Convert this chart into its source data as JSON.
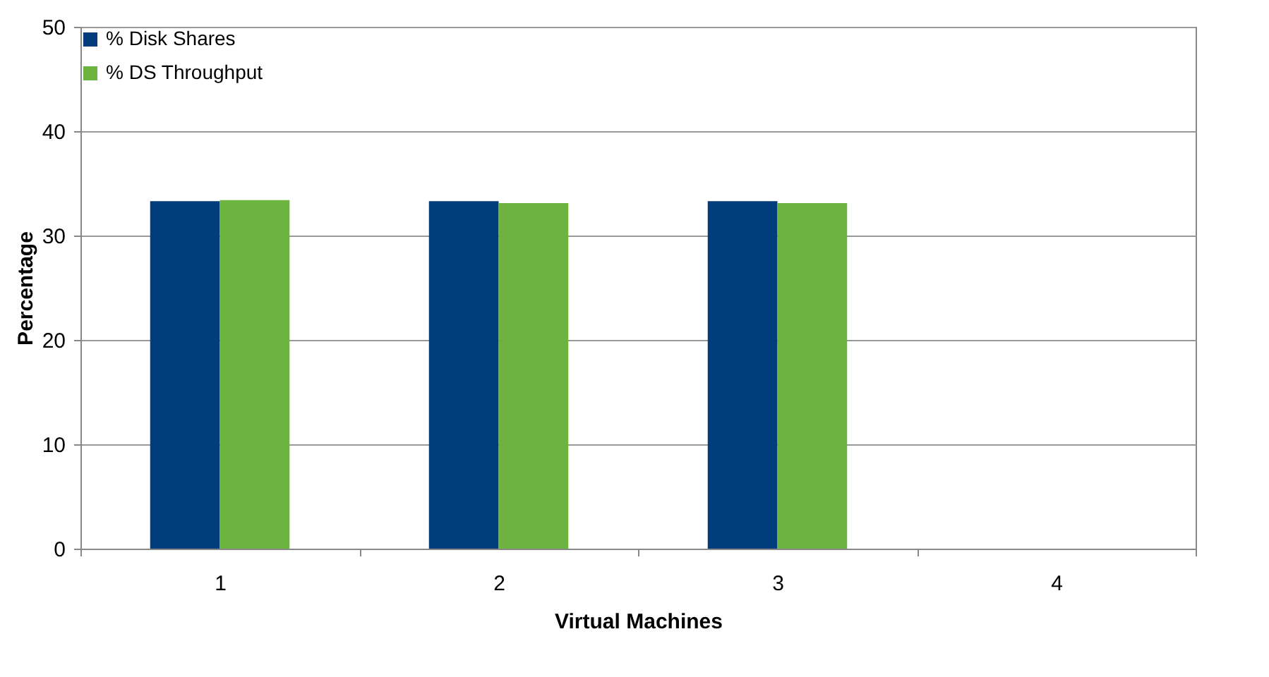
{
  "chart_data": {
    "type": "bar",
    "xlabel": "Virtual Machines",
    "ylabel": "Percentage",
    "categories": [
      "1",
      "2",
      "3",
      "4"
    ],
    "series": [
      {
        "name": "% Disk Shares",
        "color": "#003d7a",
        "values": [
          33.3,
          33.3,
          33.3,
          null
        ]
      },
      {
        "name": "% DS Throughput",
        "color": "#6db33f",
        "values": [
          33.4,
          33.1,
          33.1,
          null
        ]
      }
    ],
    "ylim": [
      0,
      50
    ],
    "yticks": [
      0,
      10,
      20,
      30,
      40,
      50
    ],
    "grid": "y",
    "legend": "top"
  }
}
